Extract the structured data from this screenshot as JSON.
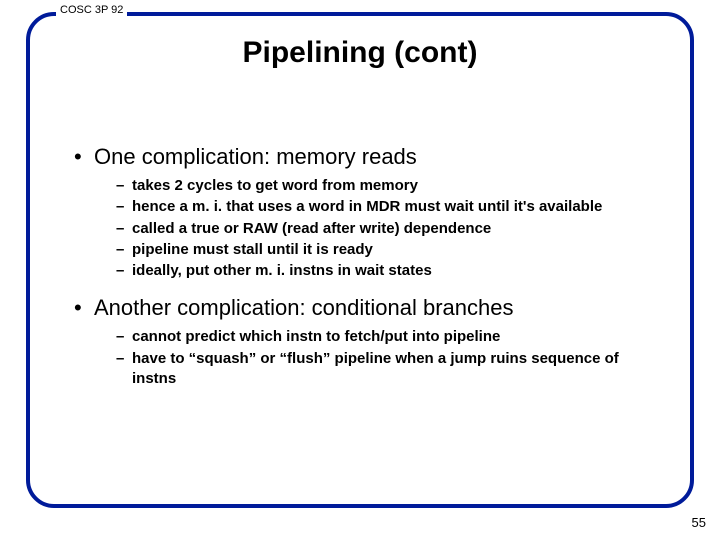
{
  "course_label": "COSC 3P 92",
  "title": "Pipelining (cont)",
  "bullets": [
    {
      "text": "One complication: memory reads",
      "subs": [
        "takes 2 cycles to get word from memory",
        "hence a m. i. that uses a word in MDR must wait until it's available",
        "called a true or RAW (read after write) dependence",
        "pipeline must stall until it is ready",
        "ideally, put other m. i. instns in wait states"
      ]
    },
    {
      "text": "Another complication: conditional branches",
      "subs": [
        "cannot predict which instn to fetch/put into pipeline",
        "have to “squash” or “flush” pipeline when a jump ruins sequence of instns"
      ]
    }
  ],
  "page_number": "55",
  "colors": {
    "border": "#001b9a",
    "background": "#ffffff",
    "text": "#000000"
  }
}
